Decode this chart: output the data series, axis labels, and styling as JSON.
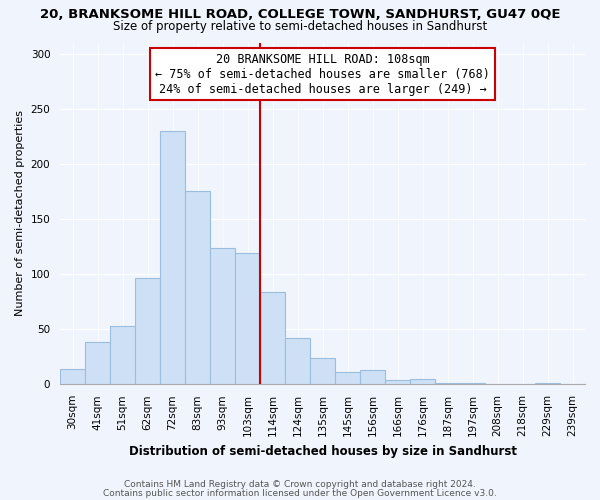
{
  "title": "20, BRANKSOME HILL ROAD, COLLEGE TOWN, SANDHURST, GU47 0QE",
  "subtitle": "Size of property relative to semi-detached houses in Sandhurst",
  "xlabel": "Distribution of semi-detached houses by size in Sandhurst",
  "ylabel": "Number of semi-detached properties",
  "bar_labels": [
    "30sqm",
    "41sqm",
    "51sqm",
    "62sqm",
    "72sqm",
    "83sqm",
    "93sqm",
    "103sqm",
    "114sqm",
    "124sqm",
    "135sqm",
    "145sqm",
    "156sqm",
    "166sqm",
    "176sqm",
    "187sqm",
    "197sqm",
    "208sqm",
    "218sqm",
    "229sqm",
    "239sqm"
  ],
  "bar_values": [
    14,
    38,
    53,
    96,
    230,
    175,
    124,
    119,
    84,
    42,
    24,
    11,
    13,
    4,
    5,
    1,
    1,
    0,
    0,
    1,
    0
  ],
  "bar_color": "#cde0f5",
  "bar_edge_color": "#9bbede",
  "vline_color": "#cc0000",
  "vline_x_index": 7.5,
  "annotation_line1": "20 BRANKSOME HILL ROAD: 108sqm",
  "annotation_line2": "← 75% of semi-detached houses are smaller (768)",
  "annotation_line3": "24% of semi-detached houses are larger (249) →",
  "annotation_box_color": "#ffffff",
  "annotation_box_edge": "#cc0000",
  "ylim": [
    0,
    310
  ],
  "yticks": [
    0,
    50,
    100,
    150,
    200,
    250,
    300
  ],
  "footer_line1": "Contains HM Land Registry data © Crown copyright and database right 2024.",
  "footer_line2": "Contains public sector information licensed under the Open Government Licence v3.0.",
  "bg_color": "#f0f4fc",
  "grid_color": "#ffffff",
  "title_fontsize": 9.5,
  "subtitle_fontsize": 8.5,
  "xlabel_fontsize": 8.5,
  "ylabel_fontsize": 8,
  "tick_fontsize": 7.5,
  "annotation_fontsize": 8.5,
  "footer_fontsize": 6.5
}
